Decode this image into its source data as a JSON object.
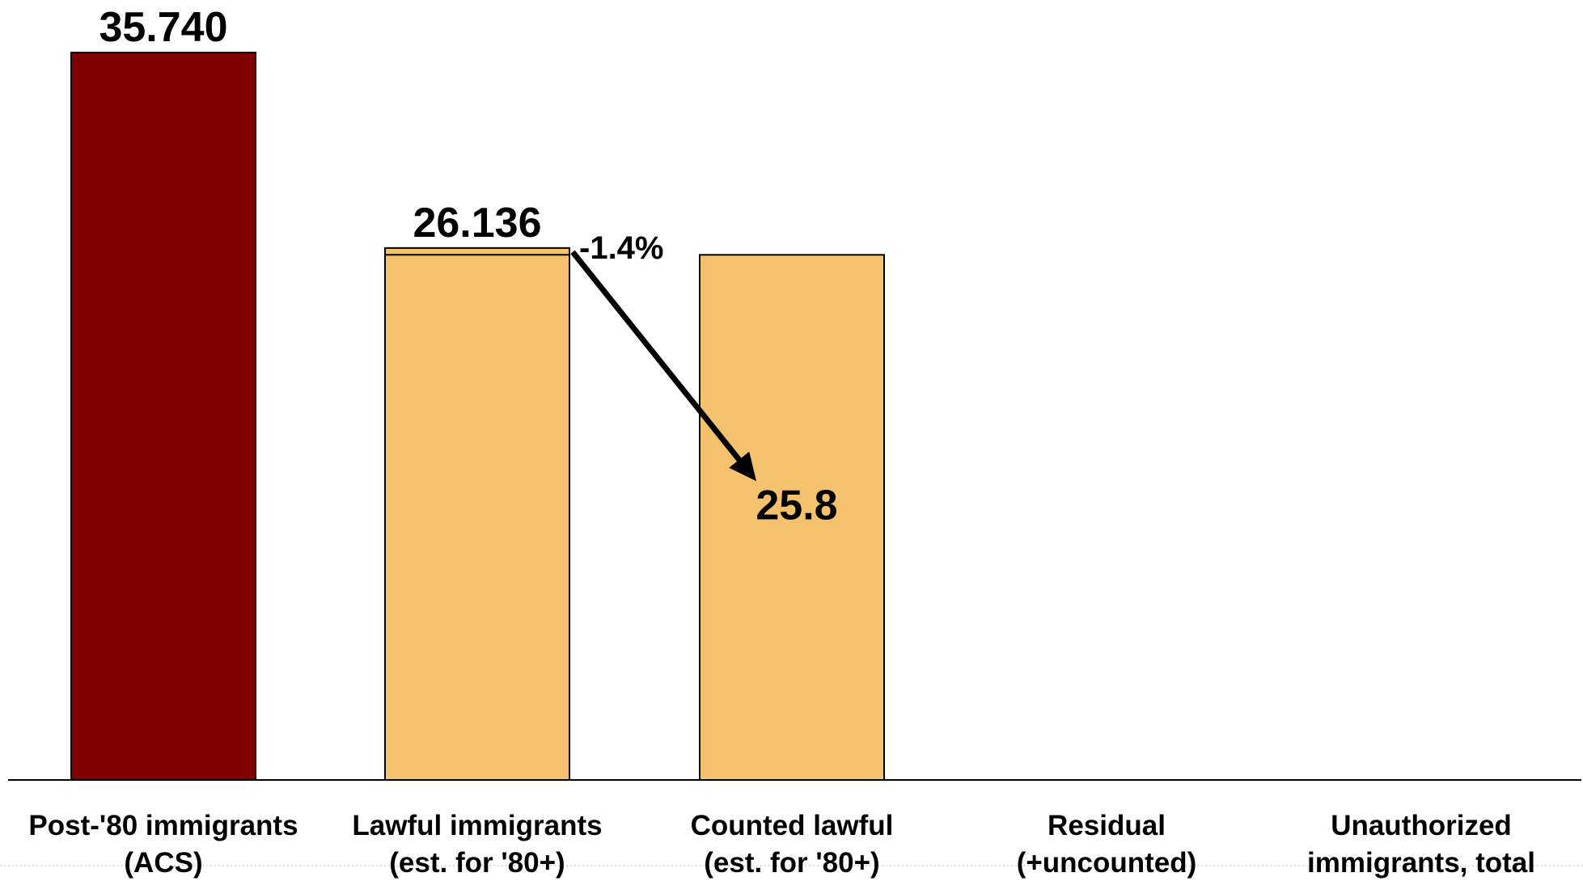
{
  "chart_data": {
    "type": "bar",
    "categories": [
      [
        "Post-'80 immigrants",
        "(ACS)"
      ],
      [
        "Lawful immigrants",
        "(est. for '80+)"
      ],
      [
        "Counted lawful",
        "(est. for '80+)"
      ],
      [
        "Residual",
        "(+uncounted)"
      ],
      [
        "Unauthorized",
        "immigrants, total"
      ]
    ],
    "values": [
      35.74,
      26.136,
      25.8,
      null,
      null
    ],
    "data_labels": [
      "35.740",
      "26.136",
      "25.8",
      "",
      ""
    ],
    "colors": [
      "#800000",
      "#F4C16D",
      "#F4C16D",
      null,
      null
    ],
    "ylim": [
      0,
      35.74
    ],
    "title": "",
    "xlabel": "",
    "ylabel": "",
    "grid": false,
    "annotations": [
      {
        "text": "-1.4%",
        "from_bar": 1,
        "to_bar": 2,
        "arrow": true
      }
    ]
  }
}
